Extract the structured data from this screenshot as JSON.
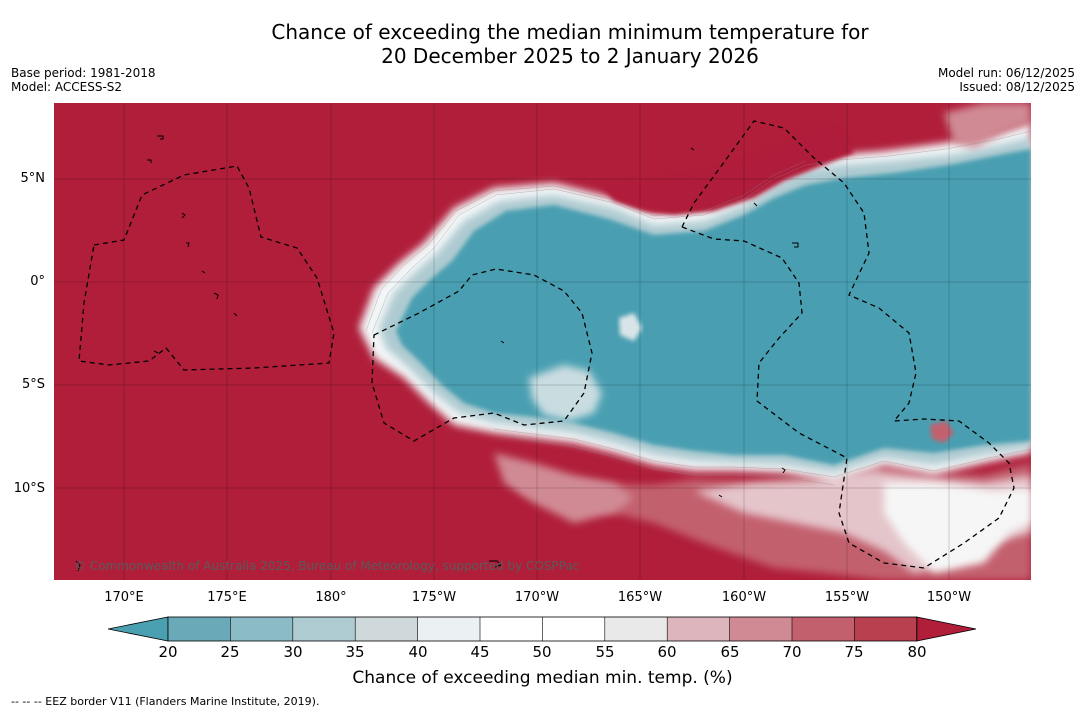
{
  "title_line1": "Chance of exceeding the median minimum temperature for",
  "title_line2": "20 December 2025 to 2 January 2026",
  "base_period": "Base period: 1981-2018",
  "model": "Model: ACCESS-S2",
  "model_run": "Model run: 06/12/2025",
  "issued": "Issued: 08/12/2025",
  "lat_labels": [
    "5°N",
    "0°",
    "5°S",
    "10°S"
  ],
  "lon_labels": [
    "170°E",
    "175°E",
    "180°",
    "175°W",
    "170°W",
    "165°W",
    "160°W",
    "155°W",
    "150°W"
  ],
  "copyright": "© Commonwealth of Australia 2025, Bureau of Meteorology, supported by COSPPac",
  "colorbar": {
    "ticks": [
      "20",
      "25",
      "30",
      "35",
      "40",
      "45",
      "50",
      "55",
      "60",
      "65",
      "70",
      "75",
      "80"
    ],
    "label": "Chance of exceeding median min. temp. (%)",
    "colors": [
      "#4a9fb1",
      "#6aaab8",
      "#8bbcc6",
      "#aecbd1",
      "#cfd9dc",
      "#ebf0f2",
      "#ffffff",
      "#ffffff",
      "#e9e9ea",
      "#dcb6bc",
      "#d08a94",
      "#c3606e",
      "#b8404f",
      "#b01e3a"
    ]
  },
  "eez_note": "--  --  -- EEZ border V11 (Flanders Marine Institute, 2019)."
}
